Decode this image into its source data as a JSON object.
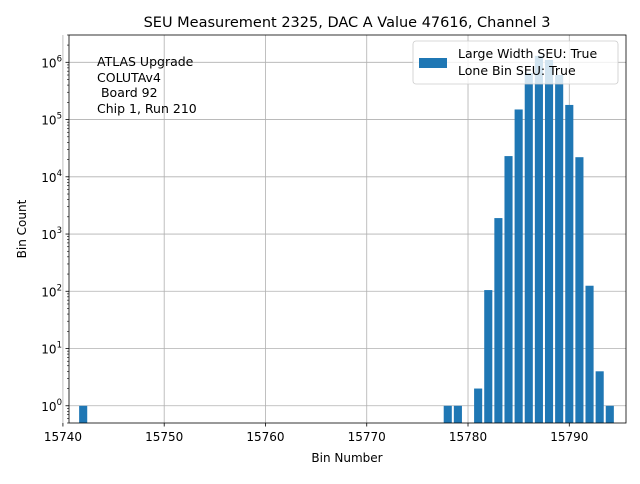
{
  "chart_data": {
    "type": "bar",
    "title": "SEU Measurement 2325, DAC A Value 47616, Channel 3",
    "xlabel": "Bin Number",
    "ylabel": "Bin Count",
    "yscale": "log",
    "xlim": [
      15740.6,
      15795.6
    ],
    "ylim": [
      0.5,
      3000000
    ],
    "grid": true,
    "legend_location": "upper right",
    "bar_color": "#1f77b4",
    "x_ticks": [
      15740,
      15750,
      15760,
      15770,
      15780,
      15790
    ],
    "y_ticks": [
      {
        "value": 1,
        "base": "10",
        "exp": "0"
      },
      {
        "value": 10,
        "base": "10",
        "exp": "1"
      },
      {
        "value": 100,
        "base": "10",
        "exp": "2"
      },
      {
        "value": 1000,
        "base": "10",
        "exp": "3"
      },
      {
        "value": 10000,
        "base": "10",
        "exp": "4"
      },
      {
        "value": 100000,
        "base": "10",
        "exp": "5"
      },
      {
        "value": 1000000,
        "base": "10",
        "exp": "6"
      }
    ],
    "annotation": [
      "ATLAS Upgrade",
      "COLUTAv4",
      " Board 92",
      "Chip 1, Run 210"
    ],
    "legend": [
      "Large Width SEU: True",
      "Lone Bin SEU: True"
    ],
    "bars": [
      {
        "x": 15742,
        "y": 1
      },
      {
        "x": 15778,
        "y": 1
      },
      {
        "x": 15779,
        "y": 1
      },
      {
        "x": 15781,
        "y": 2
      },
      {
        "x": 15782,
        "y": 105
      },
      {
        "x": 15783,
        "y": 1900
      },
      {
        "x": 15784,
        "y": 23000
      },
      {
        "x": 15785,
        "y": 150000
      },
      {
        "x": 15786,
        "y": 650000
      },
      {
        "x": 15787,
        "y": 1300000
      },
      {
        "x": 15788,
        "y": 1100000
      },
      {
        "x": 15789,
        "y": 600000
      },
      {
        "x": 15790,
        "y": 180000
      },
      {
        "x": 15791,
        "y": 22000
      },
      {
        "x": 15792,
        "y": 125
      },
      {
        "x": 15793,
        "y": 4
      },
      {
        "x": 15794,
        "y": 1
      }
    ]
  }
}
